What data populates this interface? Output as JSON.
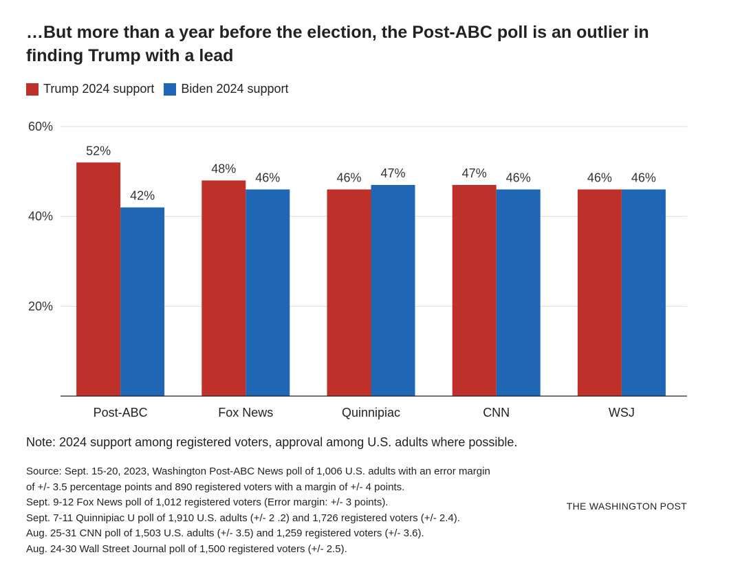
{
  "header": {
    "title": "…But more than a year before the election, the Post-ABC poll is an outlier in finding Trump with a lead"
  },
  "legend": [
    {
      "label": "Trump 2024 support",
      "color": "#c0302a"
    },
    {
      "label": "Biden 2024 support",
      "color": "#1f66b5"
    }
  ],
  "chart_data": {
    "type": "bar",
    "title": "…But more than a year before the election, the Post-ABC poll is an outlier in finding Trump with a lead",
    "xlabel": "",
    "ylabel": "",
    "categories": [
      "Post-ABC",
      "Fox News",
      "Quinnipiac",
      "CNN",
      "WSJ"
    ],
    "series": [
      {
        "name": "Trump 2024 support",
        "color": "#c0302a",
        "values": [
          52,
          48,
          46,
          47,
          46
        ]
      },
      {
        "name": "Biden 2024 support",
        "color": "#1f66b5",
        "values": [
          42,
          46,
          47,
          46,
          46
        ]
      }
    ],
    "ylim": [
      0,
      60
    ],
    "yticks": [
      {
        "value": 20,
        "label": "20%"
      },
      {
        "value": 40,
        "label": "40%"
      },
      {
        "value": 60,
        "label": "60%"
      }
    ],
    "value_suffix": "%",
    "grid": true,
    "legend_position": "top-left"
  },
  "footer": {
    "note": "Note: 2024 support among registered voters, approval among U.S. adults where possible.",
    "source_lines": [
      "Source: Sept. 15-20, 2023, Washington Post-ABC News poll of 1,006 U.S. adults with an error margin",
      "of +/- 3.5 percentage points and 890 registered voters with a margin of +/- 4 points.",
      "Sept. 9-12 Fox News poll of 1,012 registered voters (Error margin: +/- 3 points).",
      "Sept. 7-11 Quinnipiac U poll of 1,910 U.S. adults (+/- 2 .2) and 1,726 registered voters (+/- 2.4).",
      "Aug. 25-31 CNN poll of 1,503 U.S. adults (+/- 3.5) and 1,259 registered voters (+/- 3.6).",
      "Aug. 24-30 Wall Street Journal poll of 1,500 registered voters (+/- 2.5)."
    ],
    "credit": "THE WASHINGTON POST"
  }
}
